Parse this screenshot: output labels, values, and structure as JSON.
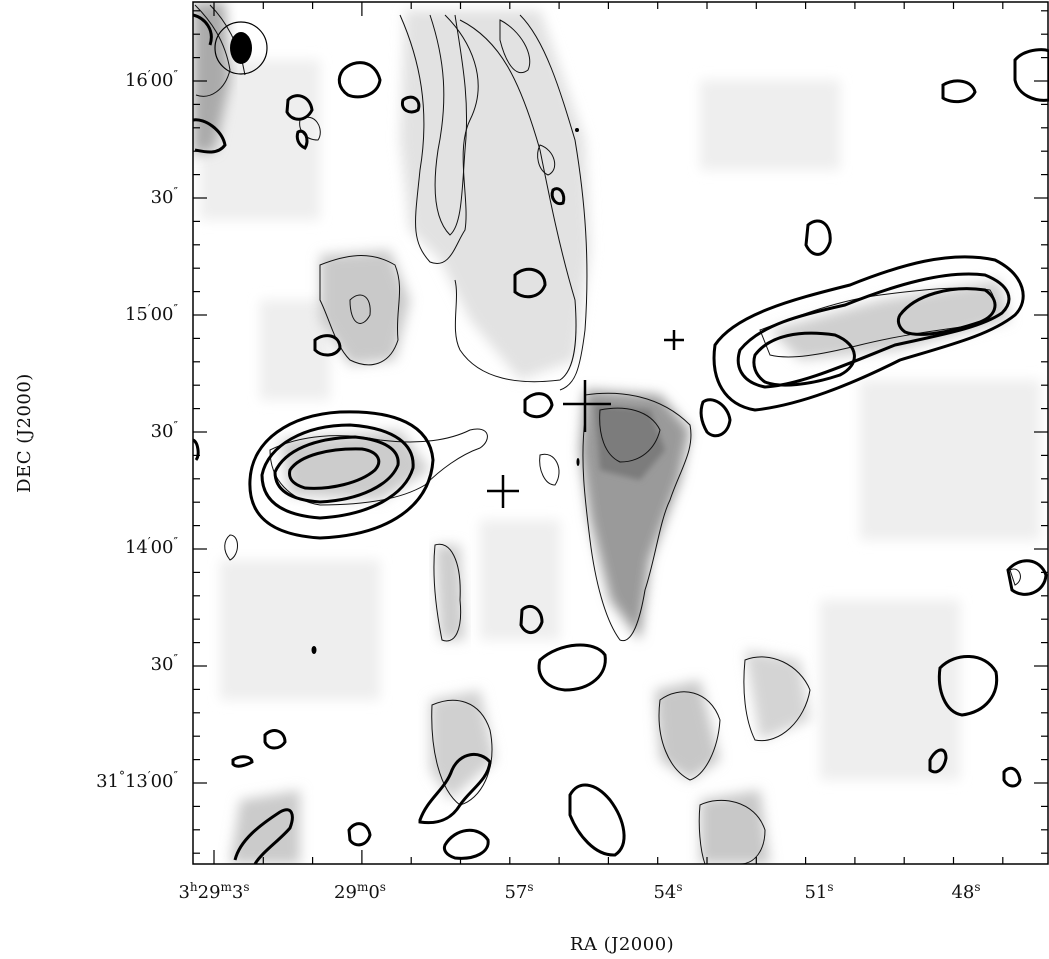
{
  "chart_data": {
    "type": "heatmap",
    "title": "",
    "xlabel": "RA (J2000)",
    "ylabel": "DEC (J2000)",
    "colormap": "grayscale",
    "x_ticks": [
      {
        "h": "3",
        "m": "29",
        "s": "3"
      },
      {
        "m": "29",
        "s": "0"
      },
      {
        "s": "57"
      },
      {
        "s": "54"
      },
      {
        "s": "51"
      },
      {
        "s": "48"
      }
    ],
    "y_ticks": [
      {
        "deg": "",
        "arcmin": "16",
        "arcsec": "00"
      },
      {
        "deg": "",
        "arcmin": "",
        "arcsec": "30"
      },
      {
        "deg": "",
        "arcmin": "15",
        "arcsec": "00"
      },
      {
        "deg": "",
        "arcmin": "",
        "arcsec": "30"
      },
      {
        "deg": "",
        "arcmin": "14",
        "arcsec": "00"
      },
      {
        "deg": "",
        "arcmin": "",
        "arcsec": "30"
      },
      {
        "deg": "31",
        "arcmin": "13",
        "arcsec": "00"
      }
    ],
    "markers": [
      {
        "kind": "cross",
        "size": "large",
        "ra": "3:28:55.2",
        "dec": "31:14:37"
      },
      {
        "kind": "cross",
        "size": "medium",
        "ra": "3:28:57.5",
        "dec": "31:14:16"
      },
      {
        "kind": "cross",
        "size": "small",
        "ra": "3:28:53.9",
        "dec": "31:14:50"
      }
    ],
    "beam": {
      "shape": "filled ellipse in circle",
      "location": "top-left"
    },
    "grid": false,
    "legend": "none"
  },
  "colors": {
    "background": "#ffffff",
    "contour_thick": "#000000",
    "contour_thin": "#111111"
  }
}
